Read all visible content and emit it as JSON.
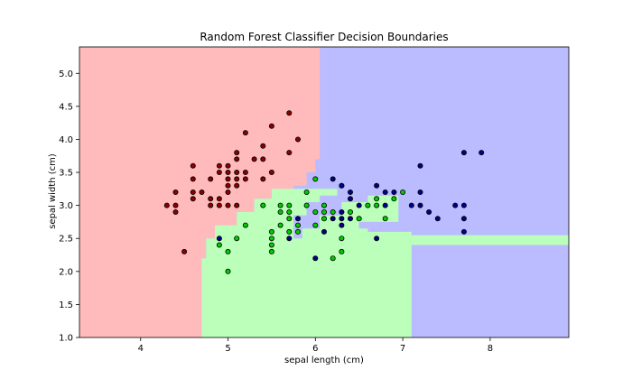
{
  "chart_data": {
    "type": "scatter",
    "title": "Random Forest Classifier Decision Boundaries",
    "xlabel": "sepal length (cm)",
    "ylabel": "sepal width (cm)",
    "xlim": [
      3.3,
      8.9
    ],
    "ylim": [
      1.0,
      5.4
    ],
    "xticks": [
      4,
      5,
      6,
      7,
      8
    ],
    "yticks": [
      1.0,
      1.5,
      2.0,
      2.5,
      3.0,
      3.5,
      4.0,
      4.5,
      5.0
    ],
    "grid": false,
    "colors": {
      "red_region": "#ffbbbb",
      "green_region": "#bbffbb",
      "blue_region": "#bbbbff",
      "red_point": "#8b0000",
      "green_point": "#00cc00",
      "blue_point": "#00008b"
    },
    "regions": [
      {
        "class": "red",
        "polygon": [
          [
            3.3,
            1.0
          ],
          [
            4.7,
            1.0
          ],
          [
            4.7,
            2.2
          ],
          [
            4.75,
            2.2
          ],
          [
            4.75,
            2.5
          ],
          [
            4.85,
            2.5
          ],
          [
            4.85,
            2.7
          ],
          [
            5.1,
            2.7
          ],
          [
            5.1,
            2.9
          ],
          [
            5.3,
            2.9
          ],
          [
            5.3,
            3.1
          ],
          [
            5.5,
            3.1
          ],
          [
            5.5,
            3.25
          ],
          [
            5.75,
            3.25
          ],
          [
            5.75,
            3.3
          ],
          [
            5.9,
            3.3
          ],
          [
            5.9,
            3.5
          ],
          [
            6.0,
            3.5
          ],
          [
            6.0,
            3.7
          ],
          [
            6.05,
            3.7
          ],
          [
            6.05,
            5.4
          ],
          [
            3.3,
            5.4
          ]
        ]
      },
      {
        "class": "green",
        "polygon": [
          [
            4.7,
            1.0
          ],
          [
            7.1,
            1.0
          ],
          [
            7.1,
            2.4
          ],
          [
            8.9,
            2.4
          ],
          [
            8.9,
            2.55
          ],
          [
            7.1,
            2.55
          ],
          [
            7.1,
            2.6
          ],
          [
            6.6,
            2.6
          ],
          [
            6.6,
            2.65
          ],
          [
            6.5,
            2.65
          ],
          [
            6.5,
            2.75
          ],
          [
            6.95,
            2.75
          ],
          [
            6.95,
            3.15
          ],
          [
            6.6,
            3.15
          ],
          [
            6.6,
            3.05
          ],
          [
            6.3,
            3.05
          ],
          [
            6.3,
            2.85
          ],
          [
            6.05,
            2.85
          ],
          [
            6.05,
            2.65
          ],
          [
            5.85,
            2.65
          ],
          [
            5.85,
            2.5
          ],
          [
            5.75,
            2.5
          ],
          [
            5.75,
            2.85
          ],
          [
            5.9,
            2.85
          ],
          [
            5.9,
            3.05
          ],
          [
            6.05,
            3.05
          ],
          [
            6.05,
            3.15
          ],
          [
            6.25,
            3.15
          ],
          [
            6.25,
            3.25
          ],
          [
            5.75,
            3.25
          ],
          [
            5.5,
            3.25
          ],
          [
            5.5,
            3.1
          ],
          [
            5.3,
            3.1
          ],
          [
            5.3,
            2.9
          ],
          [
            5.1,
            2.9
          ],
          [
            5.1,
            2.7
          ],
          [
            4.85,
            2.7
          ],
          [
            4.85,
            2.5
          ],
          [
            4.75,
            2.5
          ],
          [
            4.75,
            2.2
          ],
          [
            4.7,
            2.2
          ]
        ]
      }
    ],
    "series": [
      {
        "class": "red",
        "points": [
          [
            4.3,
            3.0
          ],
          [
            4.4,
            2.9
          ],
          [
            4.4,
            3.0
          ],
          [
            4.4,
            3.2
          ],
          [
            4.5,
            2.3
          ],
          [
            4.6,
            3.1
          ],
          [
            4.6,
            3.2
          ],
          [
            4.6,
            3.4
          ],
          [
            4.6,
            3.6
          ],
          [
            4.7,
            3.2
          ],
          [
            4.8,
            3.0
          ],
          [
            4.8,
            3.1
          ],
          [
            4.8,
            3.4
          ],
          [
            4.9,
            3.0
          ],
          [
            4.9,
            3.1
          ],
          [
            4.9,
            3.6
          ],
          [
            5.0,
            3.0
          ],
          [
            5.0,
            3.2
          ],
          [
            5.0,
            3.3
          ],
          [
            5.0,
            3.4
          ],
          [
            5.0,
            3.5
          ],
          [
            5.0,
            3.6
          ],
          [
            5.1,
            3.3
          ],
          [
            5.1,
            3.4
          ],
          [
            5.1,
            3.5
          ],
          [
            5.1,
            3.7
          ],
          [
            5.1,
            3.8
          ],
          [
            5.2,
            3.4
          ],
          [
            5.2,
            3.5
          ],
          [
            5.2,
            4.1
          ],
          [
            5.3,
            3.7
          ],
          [
            5.4,
            3.4
          ],
          [
            5.4,
            3.7
          ],
          [
            5.4,
            3.9
          ],
          [
            5.5,
            3.5
          ],
          [
            5.5,
            4.2
          ],
          [
            5.7,
            3.8
          ],
          [
            5.7,
            4.4
          ],
          [
            5.8,
            4.0
          ],
          [
            4.9,
            3.5
          ],
          [
            5.1,
            3.0
          ]
        ]
      },
      {
        "class": "green",
        "points": [
          [
            4.9,
            2.4
          ],
          [
            5.0,
            2.0
          ],
          [
            5.0,
            2.3
          ],
          [
            5.1,
            2.5
          ],
          [
            5.2,
            2.7
          ],
          [
            5.4,
            3.0
          ],
          [
            5.5,
            2.3
          ],
          [
            5.5,
            2.4
          ],
          [
            5.5,
            2.5
          ],
          [
            5.5,
            2.6
          ],
          [
            5.6,
            2.7
          ],
          [
            5.6,
            2.9
          ],
          [
            5.6,
            3.0
          ],
          [
            5.7,
            2.6
          ],
          [
            5.7,
            2.8
          ],
          [
            5.7,
            2.9
          ],
          [
            5.7,
            3.0
          ],
          [
            5.8,
            2.6
          ],
          [
            5.8,
            2.7
          ],
          [
            5.9,
            3.2
          ],
          [
            6.0,
            2.7
          ],
          [
            6.0,
            2.9
          ],
          [
            6.0,
            3.4
          ],
          [
            6.1,
            2.8
          ],
          [
            6.1,
            2.9
          ],
          [
            6.1,
            3.0
          ],
          [
            6.2,
            2.2
          ],
          [
            6.2,
            2.9
          ],
          [
            6.3,
            2.3
          ],
          [
            6.3,
            2.5
          ],
          [
            6.3,
            3.3
          ],
          [
            6.4,
            2.9
          ],
          [
            6.5,
            2.8
          ],
          [
            6.6,
            3.0
          ],
          [
            6.7,
            3.0
          ],
          [
            6.7,
            3.1
          ],
          [
            6.8,
            2.8
          ],
          [
            6.9,
            3.1
          ],
          [
            7.0,
            3.2
          ],
          [
            5.9,
            3.0
          ]
        ]
      },
      {
        "class": "blue",
        "points": [
          [
            4.9,
            2.5
          ],
          [
            5.7,
            2.5
          ],
          [
            5.8,
            2.8
          ],
          [
            6.0,
            2.2
          ],
          [
            6.1,
            2.6
          ],
          [
            6.2,
            2.8
          ],
          [
            6.2,
            3.4
          ],
          [
            6.3,
            2.7
          ],
          [
            6.3,
            2.8
          ],
          [
            6.3,
            2.9
          ],
          [
            6.3,
            3.3
          ],
          [
            6.4,
            2.8
          ],
          [
            6.4,
            3.1
          ],
          [
            6.4,
            3.2
          ],
          [
            6.5,
            3.0
          ],
          [
            6.7,
            2.5
          ],
          [
            6.7,
            3.3
          ],
          [
            6.8,
            3.0
          ],
          [
            6.8,
            3.2
          ],
          [
            6.9,
            3.2
          ],
          [
            7.1,
            3.0
          ],
          [
            7.2,
            3.0
          ],
          [
            7.2,
            3.2
          ],
          [
            7.2,
            3.6
          ],
          [
            7.3,
            2.9
          ],
          [
            7.4,
            2.8
          ],
          [
            7.6,
            3.0
          ],
          [
            7.7,
            2.6
          ],
          [
            7.7,
            2.8
          ],
          [
            7.7,
            3.0
          ],
          [
            7.7,
            3.8
          ],
          [
            7.9,
            3.8
          ]
        ]
      }
    ]
  }
}
